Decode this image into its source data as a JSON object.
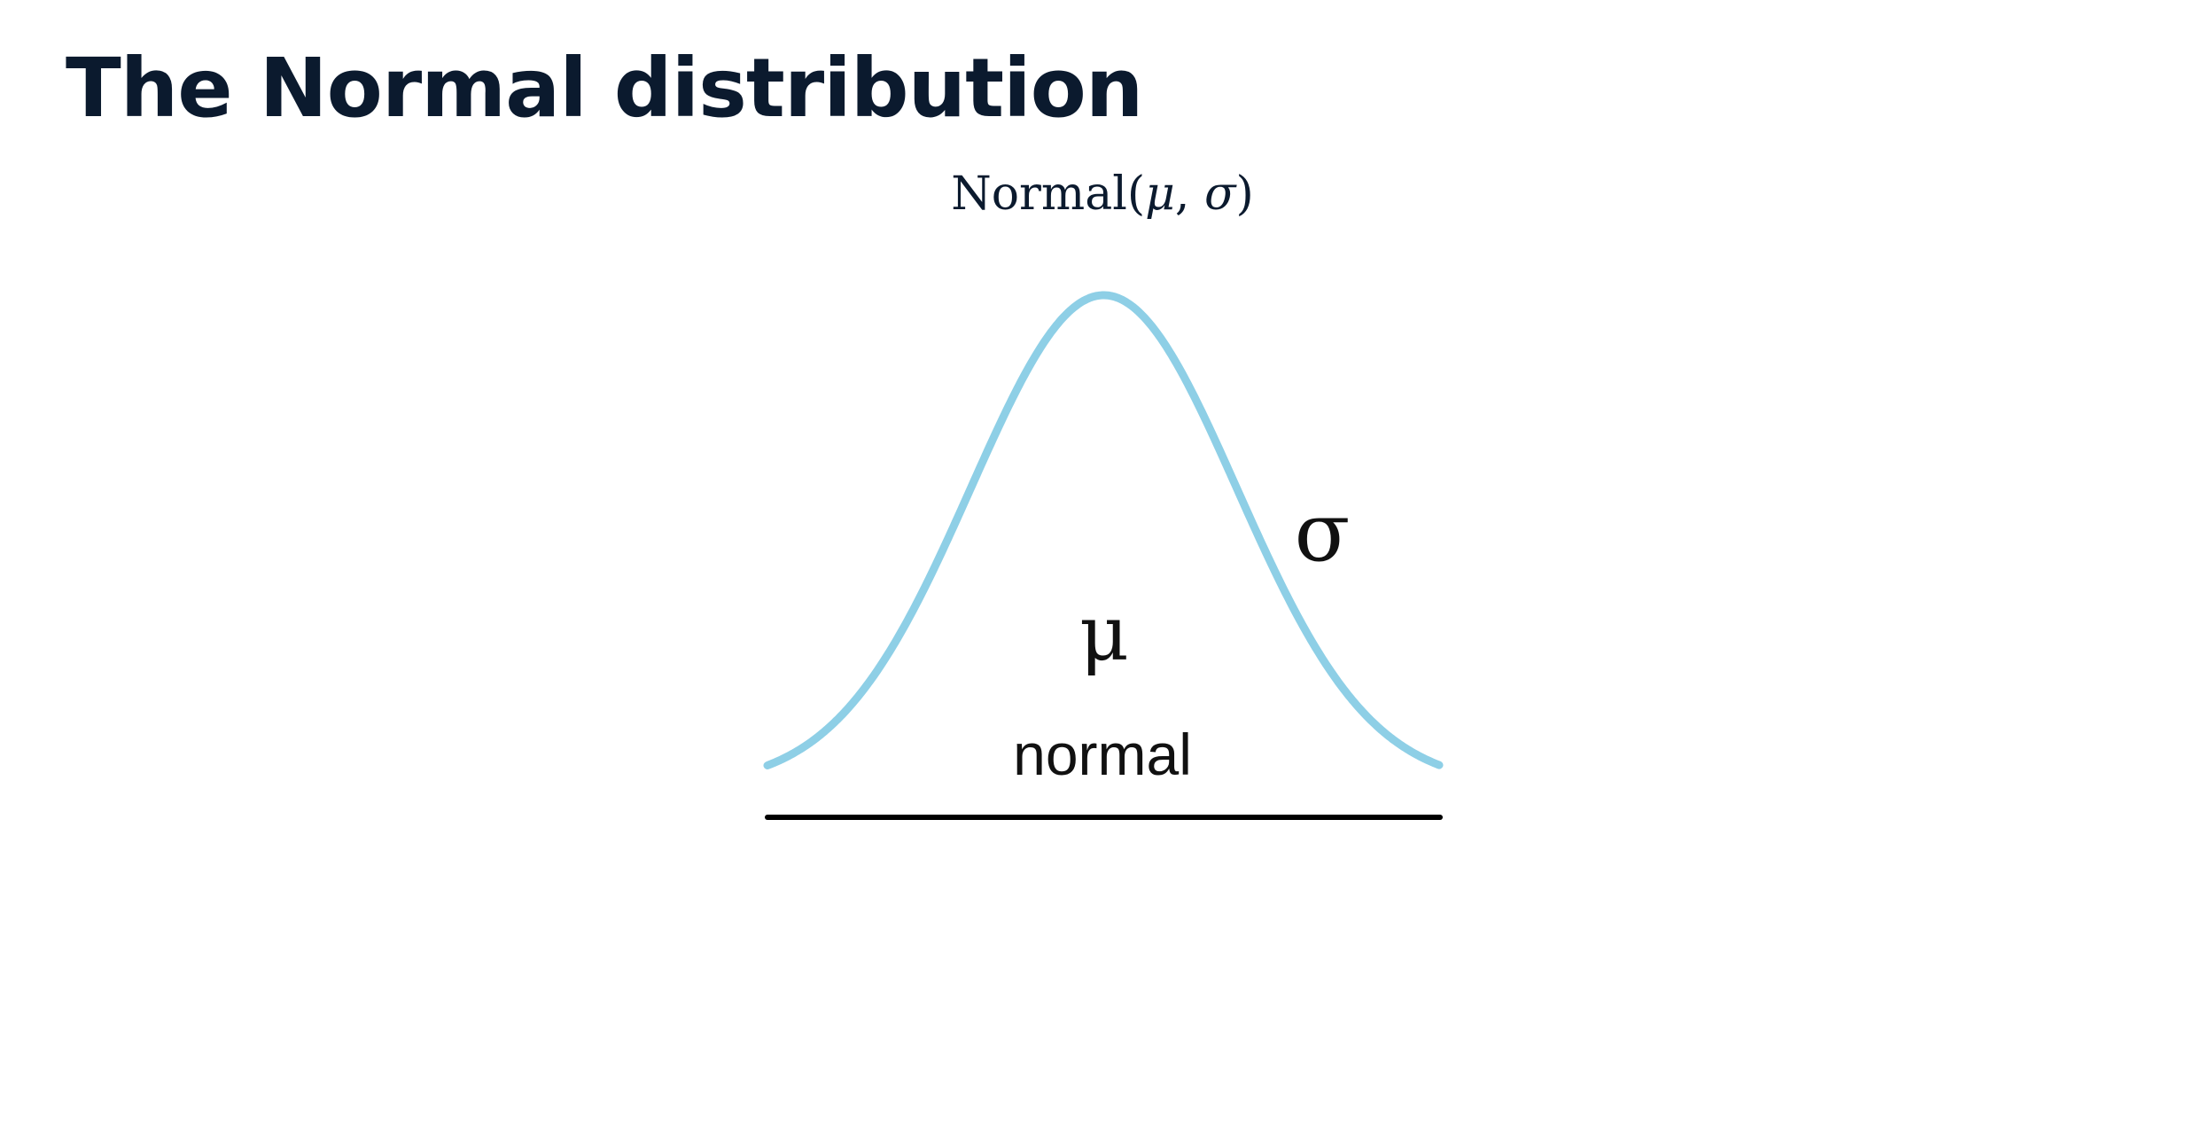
{
  "slide": {
    "title": "The Normal distribution"
  },
  "diagram": {
    "formula": {
      "name": "Normal",
      "open": "(",
      "param1": "μ",
      "separator": ", ",
      "param2": "σ",
      "close": ")"
    },
    "labels": {
      "mu": "μ",
      "sigma": "σ",
      "distribution": "normal"
    },
    "colors": {
      "curve": "#8ecfe6",
      "baseline": "#000000",
      "title": "#0b1a2e",
      "text": "#111111"
    }
  }
}
